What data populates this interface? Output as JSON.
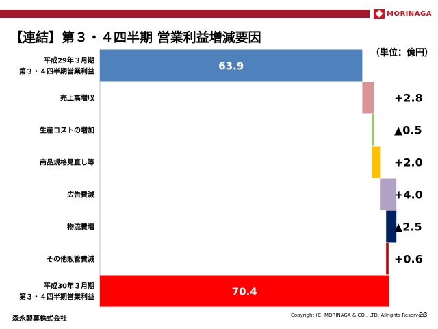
{
  "header": {
    "brand": "MORINAGA",
    "title": "【連結】第３・４四半期 営業利益増減要因",
    "unit": "（単位：億円）"
  },
  "footer": {
    "company": "森永製菓株式会社",
    "copyright": "Copyright (C) MORINAGA & CO., LTD. Allrights Reserved.",
    "page": "23"
  },
  "colors": {
    "brand": "#a3182c",
    "start": "#4f81bd",
    "sales": "#d99594",
    "cost": "#92d050",
    "mix": "#ffc000",
    "ad": "#b2a1c7",
    "logistics": "#002060",
    "sga": "#c00000",
    "end": "#ff0000"
  },
  "chart_data": {
    "type": "waterfall",
    "xlim": [
      0,
      82
    ],
    "categories": [
      {
        "lines": [
          "平成29年３月期",
          "第３・４四半期営業利益"
        ],
        "kind": "total",
        "value": 63.9,
        "label": "63.9",
        "color": "#4f81bd"
      },
      {
        "lines": [
          "売上高増収"
        ],
        "kind": "delta",
        "value": 2.8,
        "label": "+2.8",
        "color": "#d99594"
      },
      {
        "lines": [
          "生産コストの増加"
        ],
        "kind": "delta",
        "value": -0.5,
        "label": "▲0.5",
        "color": "#92d050"
      },
      {
        "lines": [
          "商品規格見直し等"
        ],
        "kind": "delta",
        "value": 2.0,
        "label": "+2.0",
        "color": "#ffc000"
      },
      {
        "lines": [
          "広告費減"
        ],
        "kind": "delta",
        "value": 4.0,
        "label": "+4.0",
        "color": "#b2a1c7"
      },
      {
        "lines": [
          "物流費増"
        ],
        "kind": "delta",
        "value": -2.5,
        "label": "▲2.5",
        "color": "#002060"
      },
      {
        "lines": [
          "その他販管費減"
        ],
        "kind": "delta",
        "value": 0.6,
        "label": "+0.6",
        "color": "#c00000"
      },
      {
        "lines": [
          "平成30年３月期",
          "第３・４四半期営業利益"
        ],
        "kind": "total",
        "value": 70.4,
        "label": "70.4",
        "color": "#ff0000"
      }
    ]
  }
}
